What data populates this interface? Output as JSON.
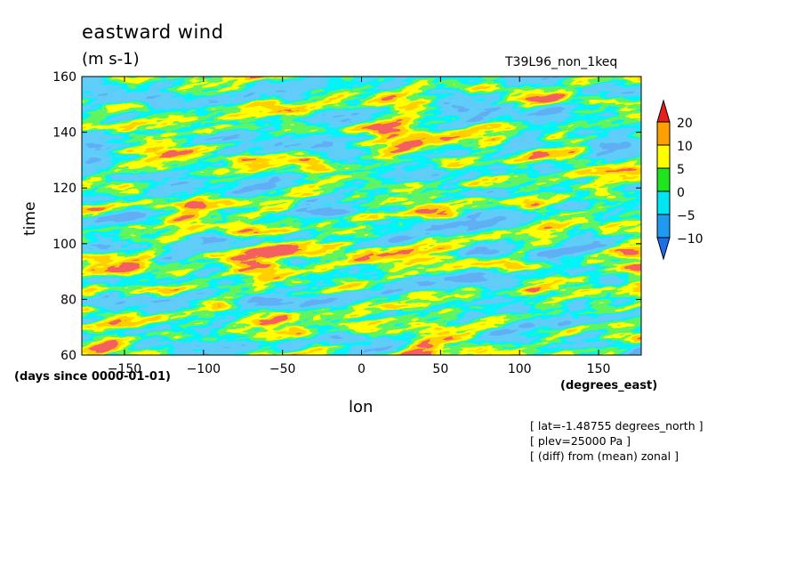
{
  "header": {
    "title": "eastward wind",
    "units": "(m s-1)",
    "run_name": "T39L96_non_1keq"
  },
  "notes": [
    "[ lat=-1.48755 degrees_north ]",
    "[ plev=25000 Pa ]",
    "[ (diff) from (mean) zonal ]"
  ],
  "chart_data": {
    "type": "heatmap",
    "title": "eastward wind",
    "subtitle": "(m s-1)",
    "xlabel": "lon",
    "ylabel": "time",
    "x_units": "(degrees_east)",
    "y_units": "(days since 0000-01-01)",
    "xlim": [
      -177,
      177
    ],
    "ylim": [
      60,
      160
    ],
    "x_ticks": [
      -150,
      -100,
      -50,
      0,
      50,
      100,
      150
    ],
    "x_tick_labels": [
      "−150",
      "−100",
      "−50",
      "0",
      "50",
      "100",
      "150"
    ],
    "y_ticks": [
      60,
      80,
      100,
      120,
      140,
      160
    ],
    "colorbar": {
      "levels": [
        -10,
        -5,
        0,
        5,
        10,
        20
      ],
      "level_labels": [
        "−10",
        "−5",
        "0",
        "5",
        "10",
        "20"
      ],
      "colors": [
        "#1e6ee6",
        "#1e9bf0",
        "#00e6f0",
        "#1ee61e",
        "#ffff00",
        "#ffa000",
        "#e61e1e"
      ]
    },
    "grid": false
  }
}
